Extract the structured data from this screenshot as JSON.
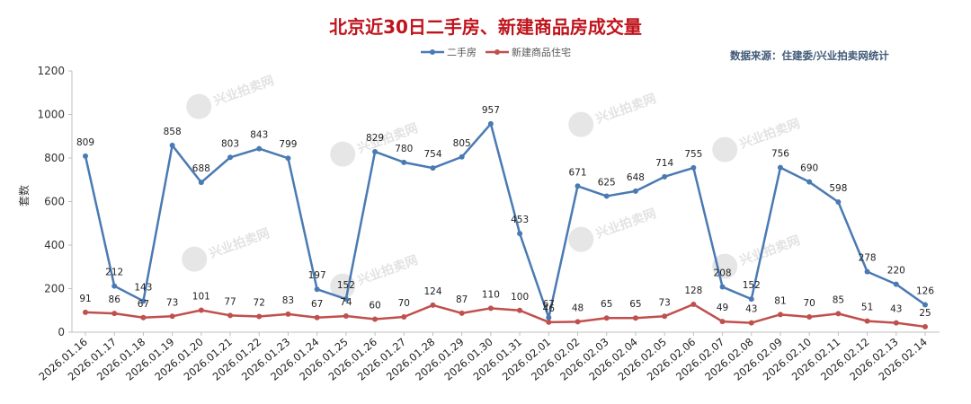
{
  "header": {
    "title": "北京近30日二手房、新建商品房成交量",
    "source": "数据来源：住建委/兴业拍卖网统计",
    "watermark": "兴业拍卖网"
  },
  "colors": {
    "second_hand": "#4a7ab3",
    "new_home": "#c0504d",
    "title": "#c0141c"
  },
  "chart_data": {
    "type": "line",
    "title": "北京近30日二手房、新建商品房成交量",
    "xlabel": "",
    "ylabel": "套数",
    "ylim": [
      0,
      1200
    ],
    "yticks": [
      0,
      200,
      400,
      600,
      800,
      1000,
      1200
    ],
    "grid": false,
    "legend_position": "top-center",
    "categories": [
      "2026.01.16",
      "2026.01.17",
      "2026.01.18",
      "2026.01.19",
      "2026.01.20",
      "2026.01.21",
      "2026.01.22",
      "2026.01.23",
      "2026.01.24",
      "2026.01.25",
      "2026.01.26",
      "2026.01.27",
      "2026.01.28",
      "2026.01.29",
      "2026.01.30",
      "2026.01.31",
      "2026.02.01",
      "2026.02.02",
      "2026.02.03",
      "2026.02.04",
      "2026.02.05",
      "2026.02.06",
      "2026.02.07",
      "2026.02.08",
      "2026.02.09",
      "2026.02.10",
      "2026.02.11",
      "2026.02.12",
      "2026.02.13",
      "2026.02.14"
    ],
    "series": [
      {
        "name": "二手房",
        "values": [
          809,
          212,
          143,
          858,
          688,
          803,
          843,
          799,
          197,
          152,
          829,
          780,
          754,
          805,
          957,
          453,
          67,
          671,
          625,
          648,
          714,
          755,
          208,
          152,
          756,
          690,
          598,
          278,
          220,
          126
        ]
      },
      {
        "name": "新建商品住宅",
        "values": [
          91,
          86,
          67,
          73,
          101,
          77,
          72,
          83,
          67,
          74,
          60,
          70,
          124,
          87,
          110,
          100,
          46,
          48,
          65,
          65,
          73,
          128,
          49,
          43,
          81,
          70,
          85,
          51,
          43,
          25
        ]
      }
    ]
  }
}
